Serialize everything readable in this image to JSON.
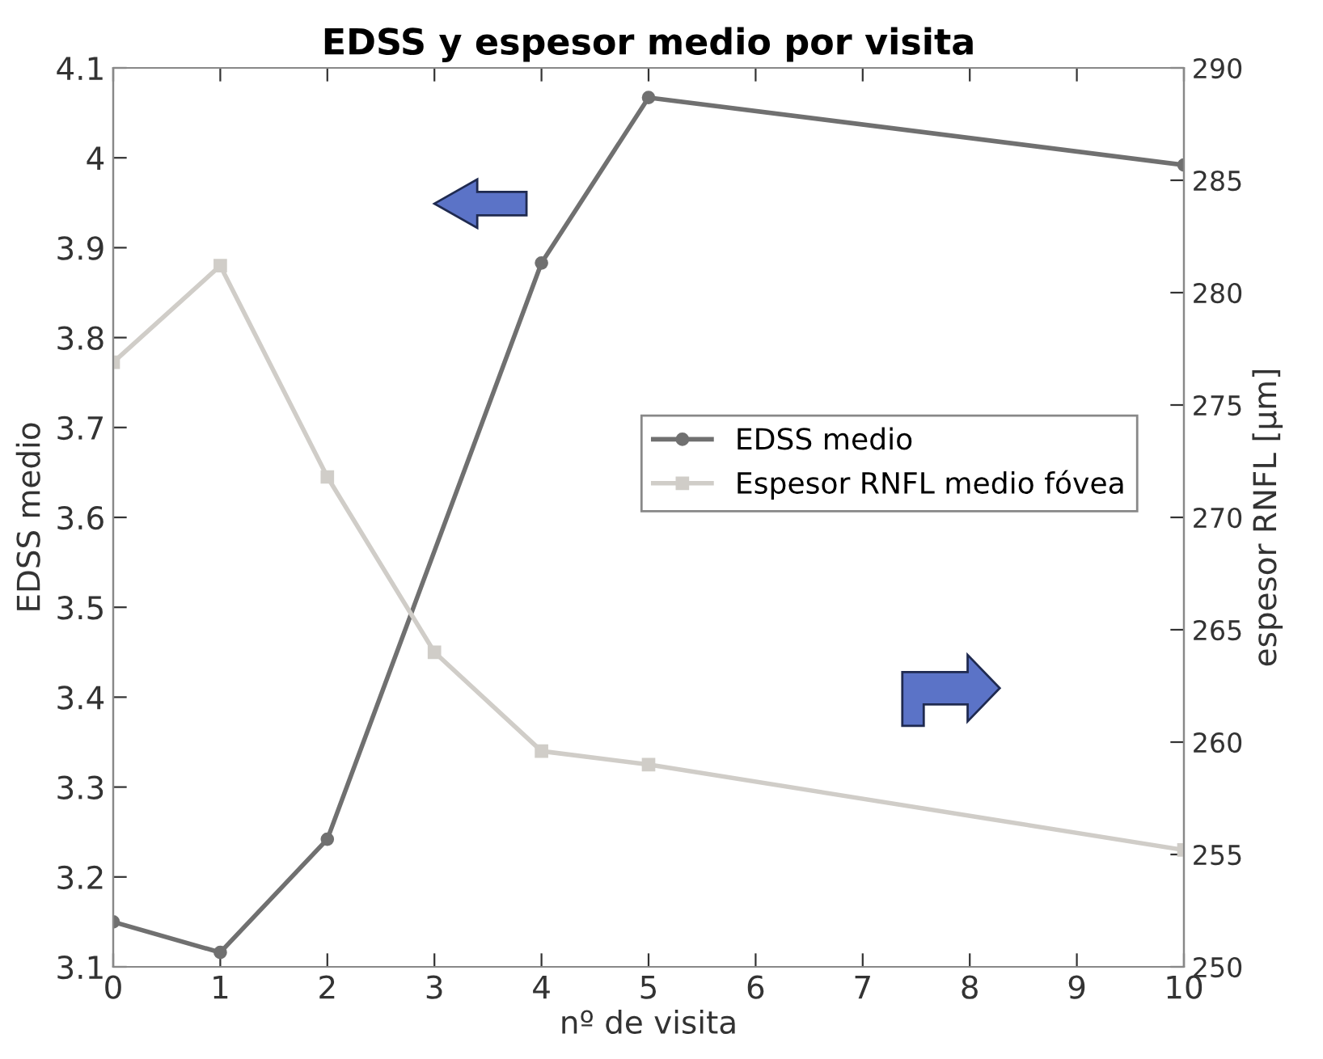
{
  "chart_data": {
    "type": "line",
    "title": "EDSS y espesor medio por visita",
    "xlabel": "nº de visita",
    "ylabel": "EDSS medio",
    "y2label": "espesor RNFL [μm]",
    "x": [
      0,
      1,
      2,
      3,
      4,
      5,
      10
    ],
    "series": [
      {
        "name": "EDSS medio",
        "color": "#707070",
        "marker": "circle",
        "x": [
          0,
          1,
          2,
          4,
          5,
          10
        ],
        "values": [
          3.15,
          3.116,
          3.242,
          3.883,
          4.067,
          3.992
        ]
      },
      {
        "name": "Espesor RNFL medio fóvea",
        "color": "#d0cdc8",
        "marker": "square",
        "axis": "y2",
        "values": [
          276.9,
          281.2,
          271.8,
          264.0,
          259.6,
          259.0,
          255.2
        ]
      }
    ],
    "xlim": [
      0,
      10
    ],
    "xticks": [
      0,
      1,
      2,
      3,
      4,
      5,
      6,
      7,
      8,
      9,
      10
    ],
    "ylim": [
      3.1,
      4.1
    ],
    "yticks": [
      {
        "value": 3.1,
        "label": "3.1"
      },
      {
        "value": 3.2,
        "label": "3.2"
      },
      {
        "value": 3.3,
        "label": "3.3"
      },
      {
        "value": 3.4,
        "label": "3.4"
      },
      {
        "value": 3.5,
        "label": "3.5"
      },
      {
        "value": 3.6,
        "label": "3.6"
      },
      {
        "value": 3.7,
        "label": "3.7"
      },
      {
        "value": 3.8,
        "label": "3.8"
      },
      {
        "value": 3.9,
        "label": "3.9"
      },
      {
        "value": 4,
        "label": "4"
      },
      {
        "value": 4.1,
        "label": "4.1"
      }
    ],
    "y2lim": [
      250,
      290
    ],
    "y2ticks": [
      250,
      255,
      260,
      265,
      270,
      275,
      280,
      285,
      290
    ],
    "grid": false,
    "legend": "center right",
    "line_style": "solid"
  }
}
